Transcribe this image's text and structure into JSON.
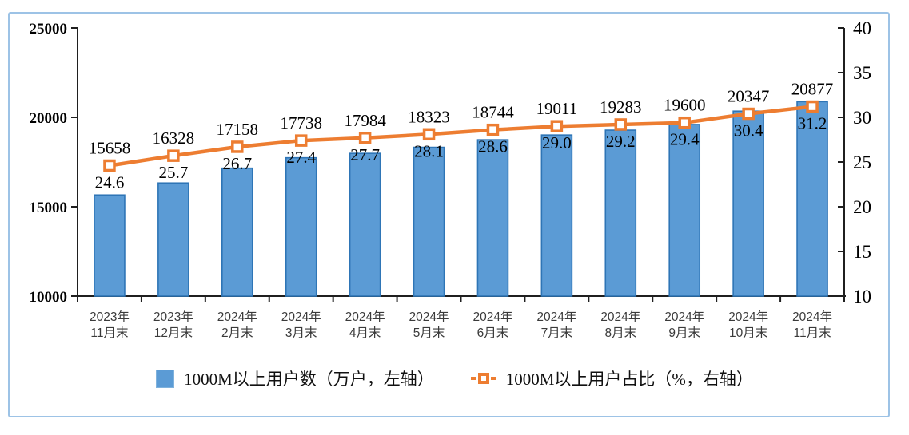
{
  "chart_data": {
    "type": "bar+line",
    "categories": [
      {
        "top": "2023年",
        "bottom": "11月末"
      },
      {
        "top": "2023年",
        "bottom": "12月末"
      },
      {
        "top": "2024年",
        "bottom": "2月末"
      },
      {
        "top": "2024年",
        "bottom": "3月末"
      },
      {
        "top": "2024年",
        "bottom": "4月末"
      },
      {
        "top": "2024年",
        "bottom": "5月末"
      },
      {
        "top": "2024年",
        "bottom": "6月末"
      },
      {
        "top": "2024年",
        "bottom": "7月末"
      },
      {
        "top": "2024年",
        "bottom": "8月末"
      },
      {
        "top": "2024年",
        "bottom": "9月末"
      },
      {
        "top": "2024年",
        "bottom": "10月末"
      },
      {
        "top": "2024年",
        "bottom": "11月末"
      }
    ],
    "series": [
      {
        "name": "1000M以上用户数（万户，左轴）",
        "type": "bar",
        "axis": "left",
        "values": [
          15658,
          16328,
          17158,
          17738,
          17984,
          18323,
          18744,
          19011,
          19283,
          19600,
          20347,
          20877
        ],
        "fill": "#5B9BD5",
        "stroke": "#2E75B6"
      },
      {
        "name": "1000M以上用户占比（%，右轴）",
        "type": "line",
        "axis": "right",
        "values": [
          24.6,
          25.7,
          26.7,
          27.4,
          27.7,
          28.1,
          28.6,
          29.0,
          29.2,
          29.4,
          30.4,
          31.2
        ],
        "color": "#ED7D31",
        "marker": "square-white-center",
        "label_decimals": 1
      }
    ],
    "left_axis": {
      "min": 10000,
      "max": 25000,
      "ticks": [
        25000,
        20000,
        15000,
        10000
      ]
    },
    "right_axis": {
      "min": 10,
      "max": 40,
      "ticks": [
        40,
        35,
        30,
        25,
        20,
        15,
        10
      ]
    },
    "grid": false,
    "legend_position": "bottom",
    "title": "",
    "frame_color": "#9DC3E6",
    "axis_color": "#1F1F1F",
    "category_label_color": "#3A3A3A"
  }
}
